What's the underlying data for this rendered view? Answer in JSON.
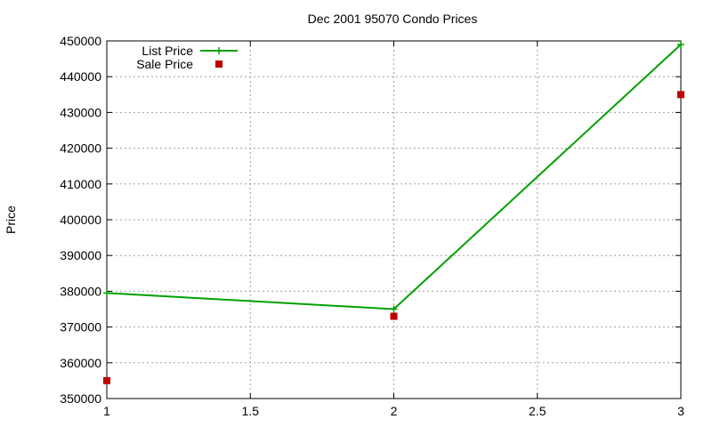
{
  "chart_data": {
    "type": "line",
    "title": "Dec 2001 95070 Condo Prices",
    "xlabel": "",
    "ylabel": "Price",
    "xlim": [
      1,
      3
    ],
    "ylim": [
      350000,
      450000
    ],
    "x_ticks": [
      1,
      1.5,
      2,
      2.5,
      3
    ],
    "y_ticks": [
      350000,
      360000,
      370000,
      380000,
      390000,
      400000,
      410000,
      420000,
      430000,
      440000,
      450000
    ],
    "grid": true,
    "legend_position": "top-left",
    "series": [
      {
        "name": "List Price",
        "style": "line-points",
        "color": "#00a000",
        "x": [
          1,
          2,
          3
        ],
        "values": [
          379500,
          375000,
          449000
        ]
      },
      {
        "name": "Sale Price",
        "style": "points",
        "color": "#c00000",
        "x": [
          1,
          2,
          3
        ],
        "values": [
          355000,
          373000,
          435000
        ]
      }
    ]
  }
}
